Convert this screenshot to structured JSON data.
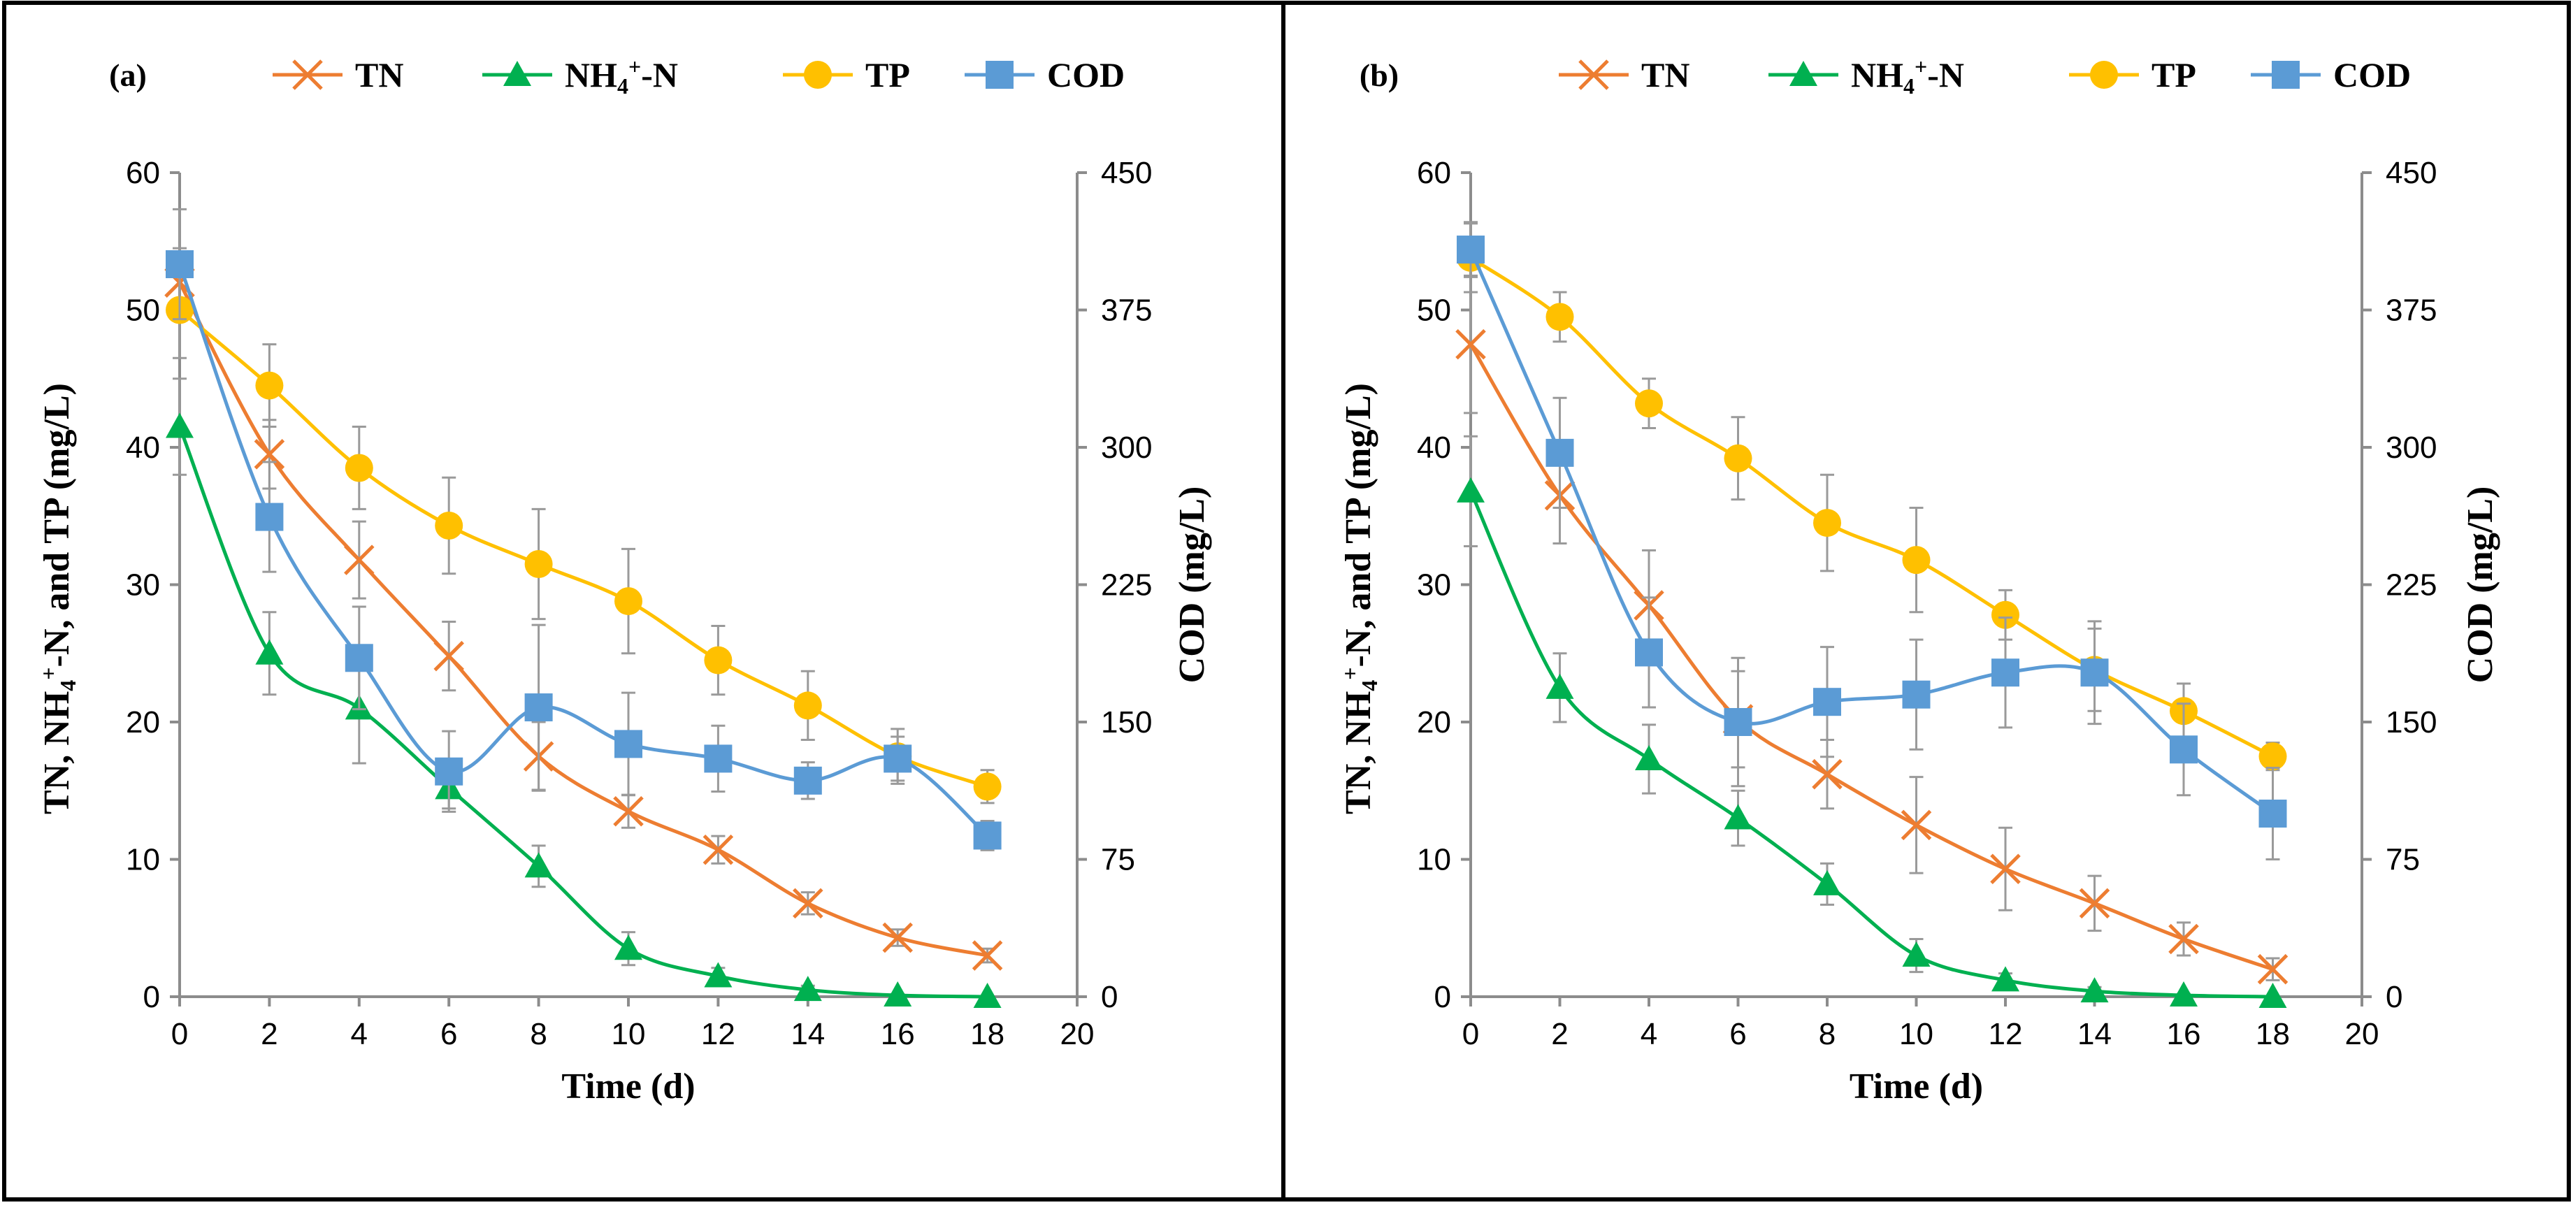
{
  "chart_data": [
    {
      "type": "line",
      "panel_label": "(a)",
      "x": [
        0,
        2,
        4,
        6,
        8,
        10,
        12,
        14,
        16,
        18
      ],
      "xlabel": "Time (d)",
      "ylabel": "TN, NH4+-N, and TP (mg/L)",
      "y2label": "COD (mg/L)",
      "xlim": [
        0,
        20
      ],
      "ylim": [
        0,
        60
      ],
      "y2lim": [
        0,
        450
      ],
      "xticks": [
        "0",
        "2",
        "4",
        "6",
        "8",
        "10",
        "12",
        "14",
        "16",
        "18",
        "20"
      ],
      "yticks": [
        "0",
        "10",
        "20",
        "30",
        "40",
        "50",
        "60"
      ],
      "y2ticks": [
        "0",
        "75",
        "150",
        "225",
        "300",
        "375",
        "450"
      ],
      "legend_position": "top",
      "series": [
        {
          "name": "TN",
          "marker": "x",
          "color": "#ED7D31",
          "axis": "left",
          "values": [
            52,
            39.5,
            31.8,
            24.8,
            17.5,
            13.5,
            10.7,
            6.8,
            4.3,
            3
          ],
          "errors": [
            2.5,
            2.5,
            2.8,
            2.5,
            2.5,
            1.2,
            1,
            0.8,
            0.6,
            0.5
          ]
        },
        {
          "name": "NH4+-N",
          "marker": "triangle",
          "color": "#00B050",
          "axis": "left",
          "values": [
            41.5,
            25,
            21,
            15.2,
            9.5,
            3.5,
            1.5,
            0.5,
            0.1,
            0
          ],
          "errors": [
            3.5,
            3,
            4,
            1.5,
            1.5,
            1.2,
            0.6,
            0.3,
            0.1,
            0
          ]
        },
        {
          "name": "TP",
          "marker": "circle",
          "color": "#FFC000",
          "axis": "left",
          "values": [
            50,
            44.5,
            38.5,
            34.3,
            31.5,
            28.8,
            24.5,
            21.2,
            17.5,
            15.3
          ],
          "errors": [
            3.5,
            3,
            3,
            3.5,
            4,
            3.8,
            2.5,
            2.5,
            2,
            1.2
          ]
        },
        {
          "name": "COD",
          "marker": "square",
          "color": "#5B9BD5",
          "axis": "right",
          "values": [
            400,
            262,
            185,
            123,
            158,
            138,
            130,
            118,
            130,
            88
          ],
          "errors": [
            30,
            30,
            28,
            22,
            45,
            28,
            18,
            10,
            12,
            8
          ]
        }
      ]
    },
    {
      "type": "line",
      "panel_label": "(b)",
      "x": [
        0,
        2,
        4,
        6,
        8,
        10,
        12,
        14,
        16,
        18
      ],
      "xlabel": "Time (d)",
      "ylabel": "TN, NH4+-N, and TP (mg/L)",
      "y2label": "COD (mg/L)",
      "xlim": [
        0,
        20
      ],
      "ylim": [
        0,
        60
      ],
      "y2lim": [
        0,
        450
      ],
      "xticks": [
        "0",
        "2",
        "4",
        "6",
        "8",
        "10",
        "12",
        "14",
        "16",
        "18",
        "20"
      ],
      "yticks": [
        "0",
        "10",
        "20",
        "30",
        "40",
        "50",
        "60"
      ],
      "y2ticks": [
        "0",
        "75",
        "150",
        "225",
        "300",
        "375",
        "450"
      ],
      "legend_position": "top",
      "series": [
        {
          "name": "TN",
          "marker": "x",
          "color": "#ED7D31",
          "axis": "left",
          "values": [
            47.5,
            36.5,
            28.5,
            20.2,
            16.2,
            12.5,
            9.3,
            6.8,
            4.2,
            2
          ],
          "errors": [
            5,
            3.5,
            4,
            3.5,
            2.5,
            3.5,
            3,
            2,
            1.2,
            0.8
          ]
        },
        {
          "name": "NH4+-N",
          "marker": "triangle",
          "color": "#00B050",
          "axis": "left",
          "values": [
            36.8,
            22.5,
            17.3,
            13,
            8.2,
            3,
            1.2,
            0.4,
            0.1,
            0
          ],
          "errors": [
            4,
            2.5,
            2.5,
            2,
            1.5,
            1.2,
            0.5,
            0.3,
            0.1,
            0
          ]
        },
        {
          "name": "TP",
          "marker": "circle",
          "color": "#FFC000",
          "axis": "left",
          "values": [
            53.8,
            49.5,
            43.2,
            39.2,
            34.5,
            31.8,
            27.8,
            23.8,
            20.8,
            17.5
          ],
          "errors": [
            2.5,
            1.8,
            1.8,
            3,
            3.5,
            3.8,
            1.8,
            3,
            2,
            1
          ]
        },
        {
          "name": "COD",
          "marker": "square",
          "color": "#5B9BD5",
          "axis": "right",
          "values": [
            408,
            297,
            188,
            150,
            161,
            165,
            177,
            177,
            135,
            100
          ],
          "errors": [
            15,
            30,
            30,
            35,
            30,
            30,
            30,
            28,
            25,
            25
          ]
        }
      ]
    }
  ]
}
